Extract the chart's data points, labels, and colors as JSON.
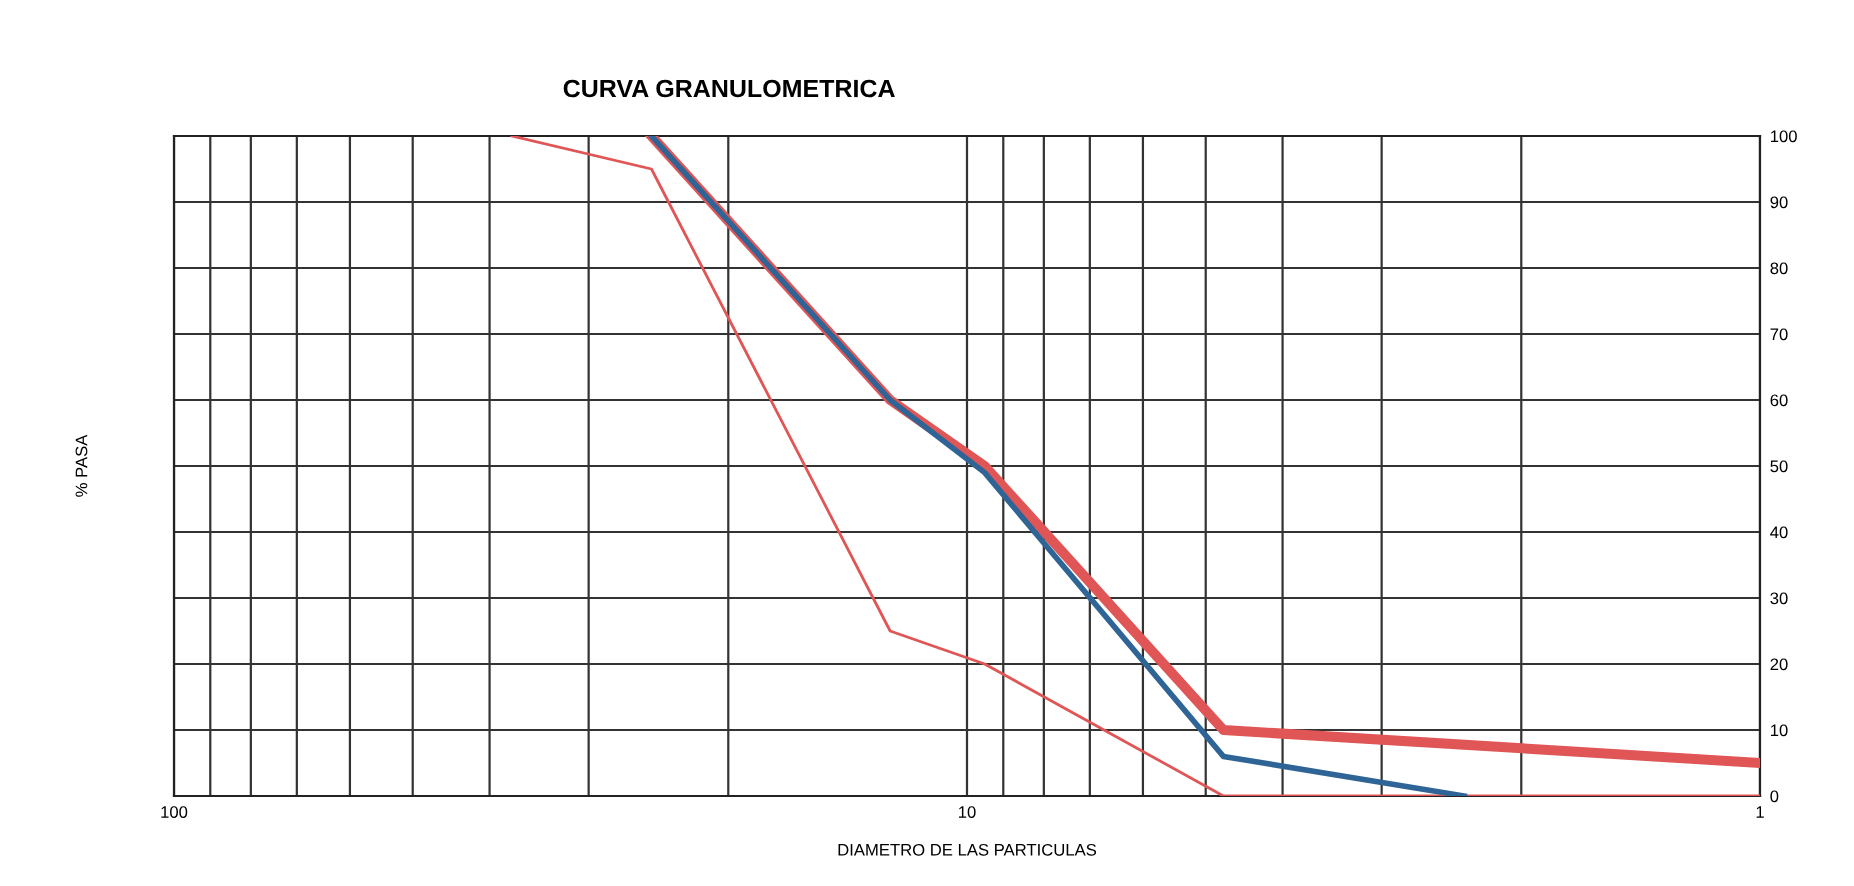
{
  "chart_data": {
    "type": "line",
    "title": "CURVA GRANULOMETRICA",
    "xlabel": "DIAMETRO DE LAS PARTICULAS",
    "ylabel": "% PASA",
    "log": "x",
    "xlim": [
      100,
      1
    ],
    "xticks": [
      100,
      {
        "value": 90,
        "label": null
      },
      {
        "value": 80,
        "label": null
      },
      {
        "value": 70,
        "label": null
      },
      {
        "value": 60,
        "label": null
      },
      {
        "value": 50,
        "label": null
      },
      {
        "value": 40,
        "label": null
      },
      {
        "value": 30,
        "label": null
      },
      {
        "value": 20,
        "label": null
      },
      10,
      {
        "value": 9,
        "label": null
      },
      {
        "value": 8,
        "label": null
      },
      {
        "value": 7,
        "label": null
      },
      {
        "value": 6,
        "label": null
      },
      {
        "value": 5,
        "label": null
      },
      {
        "value": 4,
        "label": null
      },
      {
        "value": 3,
        "label": null
      },
      {
        "value": 2,
        "label": null
      },
      1
    ],
    "ylim": [
      0,
      100
    ],
    "yticks": [
      0,
      10,
      20,
      30,
      40,
      50,
      60,
      70,
      80,
      90,
      100
    ],
    "grid": true,
    "marker": "none",
    "line_style": "solid",
    "series": [
      {
        "color": "#e05555",
        "x": [
          37.5,
          25,
          12.5,
          9.5,
          4.75,
          1
        ],
        "values": [
          100,
          95,
          25,
          20,
          0,
          0
        ]
      },
      {
        "color": "#e05555",
        "x": [
          25,
          12.5,
          9.5,
          4.75,
          1
        ],
        "values": [
          100,
          60,
          50,
          10,
          5
        ]
      },
      {
        "color": "#2e6596",
        "x": [
          25,
          12.5,
          9.5,
          4.75,
          2.36
        ],
        "values": [
          100,
          60,
          49,
          6,
          0
        ]
      }
    ]
  }
}
